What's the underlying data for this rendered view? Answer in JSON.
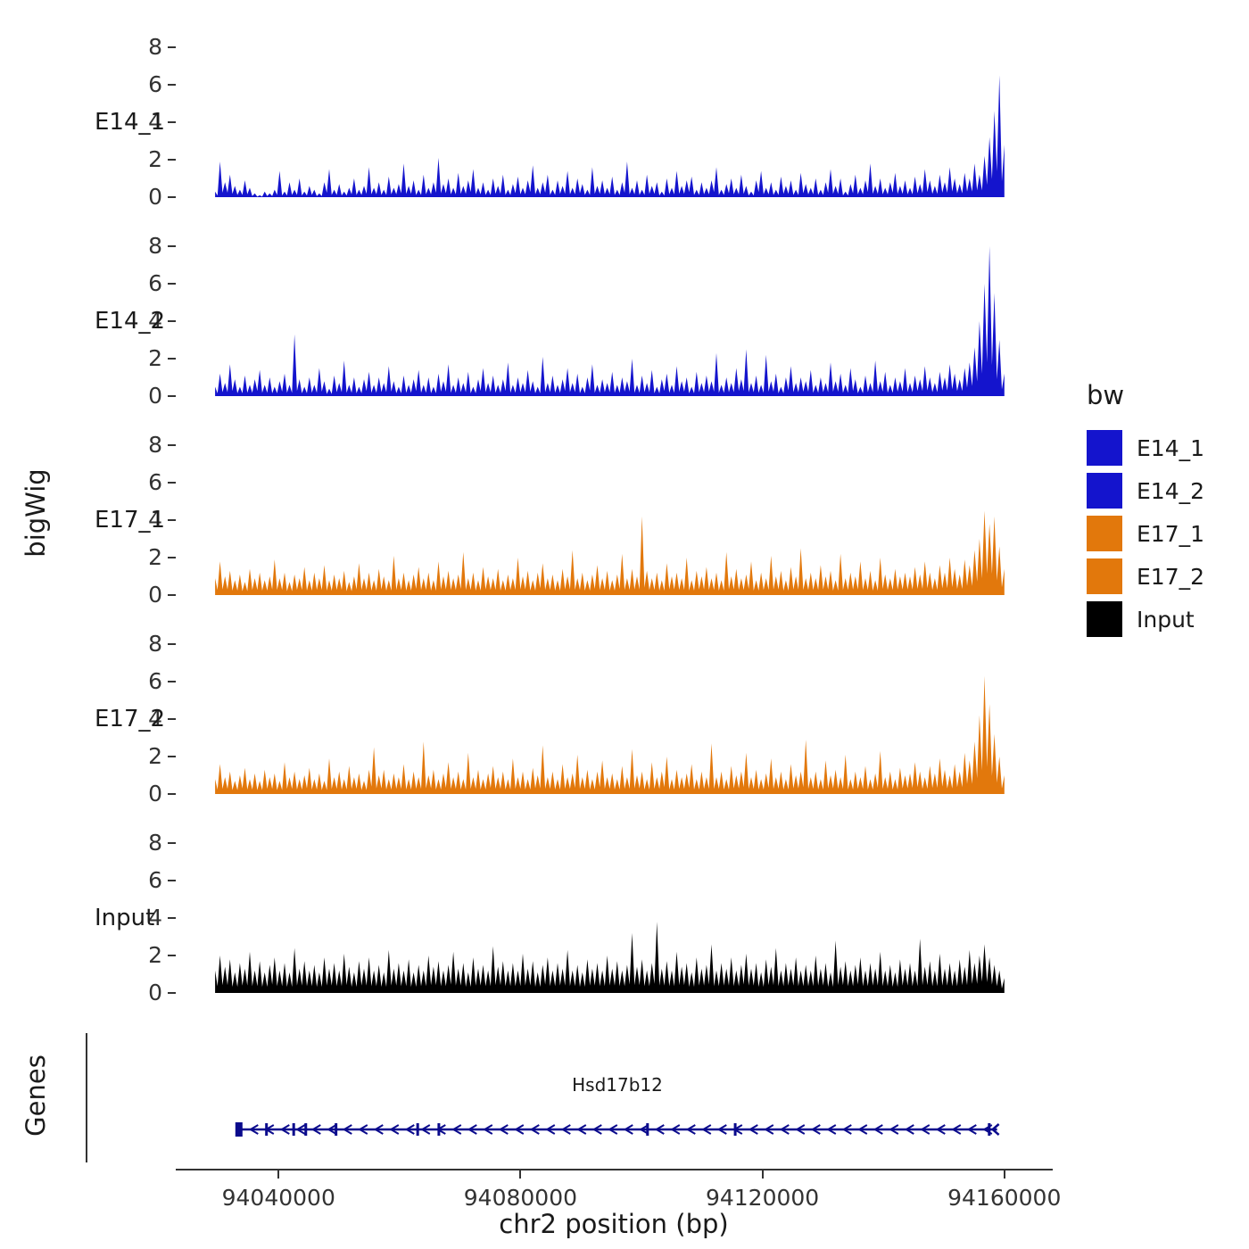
{
  "figure": {
    "y_axis_title": "bigWig",
    "genes_axis_title": "Genes",
    "x_axis_title": "chr2 position (bp)"
  },
  "legend": {
    "title": "bw",
    "items": [
      {
        "label": "E14_1",
        "color": "#1414CD"
      },
      {
        "label": "E14_2",
        "color": "#1414CD"
      },
      {
        "label": "E17_1",
        "color": "#E2780C"
      },
      {
        "label": "E17_2",
        "color": "#E2780C"
      },
      {
        "label": "Input",
        "color": "#000000"
      }
    ]
  },
  "gene": {
    "label": "Hsd17b12",
    "color": "#0A0A8C",
    "strand": "-",
    "start_bp": 94033000,
    "end_bp": 94158800,
    "exon_ticks_bp": [
      94038000,
      94042500,
      94044500,
      94049500,
      94063000,
      94066500,
      94101000,
      94115500,
      94157500
    ]
  },
  "chart_data": {
    "type": "area",
    "title": "",
    "xlabel": "chr2 position (bp)",
    "ylabel": "bigWig",
    "x_domain": [
      94023000,
      94168000
    ],
    "x_ticks": [
      {
        "bp": 94040000,
        "label": "94040000"
      },
      {
        "bp": 94080000,
        "label": "94080000"
      },
      {
        "bp": 94120000,
        "label": "94120000"
      },
      {
        "bp": 94160000,
        "label": "94160000"
      }
    ],
    "y_ticks": [
      0,
      2,
      4,
      6,
      8
    ],
    "ylim": [
      0,
      8.8
    ],
    "grid": false,
    "legend_position": "right",
    "tracks": [
      {
        "name": "E14_1",
        "color": "#1414CD",
        "start_bp": 94029500,
        "end_bp": 94160000,
        "values": [
          0.3,
          1.9,
          0.8,
          1.2,
          0.6,
          0.4,
          0.9,
          0.5,
          0.2,
          0.1,
          0.3,
          0.2,
          0.4,
          1.4,
          0.3,
          0.8,
          0.4,
          1.0,
          0.3,
          0.6,
          0.4,
          0.2,
          0.8,
          1.5,
          0.4,
          0.7,
          0.3,
          0.5,
          1.0,
          0.4,
          0.6,
          1.6,
          0.5,
          0.8,
          0.4,
          1.1,
          0.5,
          0.7,
          1.8,
          0.6,
          0.9,
          0.4,
          1.2,
          0.5,
          0.8,
          2.1,
          0.7,
          1.0,
          0.5,
          1.3,
          0.6,
          0.9,
          1.5,
          0.5,
          0.8,
          0.4,
          1.0,
          0.6,
          1.2,
          0.4,
          0.7,
          1.1,
          0.5,
          0.9,
          1.7,
          0.5,
          0.8,
          1.2,
          0.4,
          0.9,
          0.6,
          1.4,
          0.5,
          1.0,
          0.7,
          0.4,
          1.6,
          0.6,
          0.9,
          0.5,
          1.1,
          0.4,
          0.8,
          1.9,
          0.5,
          0.9,
          0.4,
          1.2,
          0.6,
          0.8,
          0.3,
          1.0,
          0.5,
          1.4,
          0.6,
          0.9,
          1.1,
          0.4,
          0.8,
          0.5,
          0.9,
          1.6,
          0.4,
          0.7,
          1.0,
          0.5,
          1.2,
          0.6,
          0.3,
          0.9,
          1.4,
          0.5,
          0.8,
          0.4,
          1.1,
          0.6,
          0.9,
          0.4,
          1.3,
          0.7,
          0.5,
          1.0,
          0.4,
          0.8,
          1.5,
          0.6,
          1.0,
          0.3,
          0.7,
          1.2,
          0.5,
          0.9,
          1.8,
          0.6,
          1.0,
          0.5,
          0.8,
          1.3,
          0.6,
          0.9,
          0.5,
          1.1,
          0.7,
          1.5,
          0.9,
          0.6,
          1.2,
          0.8,
          1.6,
          1.0,
          0.7,
          1.3,
          1.0,
          1.8,
          1.2,
          2.2,
          3.2,
          4.6,
          6.5,
          2.8
        ]
      },
      {
        "name": "E14_2",
        "color": "#1414CD",
        "start_bp": 94029500,
        "end_bp": 94160000,
        "values": [
          0.5,
          1.2,
          0.7,
          1.7,
          0.9,
          0.5,
          1.1,
          0.6,
          0.9,
          1.4,
          0.6,
          1.0,
          0.5,
          0.8,
          1.2,
          0.6,
          3.3,
          0.9,
          0.5,
          1.0,
          0.6,
          1.5,
          0.8,
          0.4,
          1.1,
          0.7,
          1.9,
          0.6,
          1.0,
          0.5,
          0.9,
          1.3,
          0.6,
          1.0,
          0.7,
          1.6,
          0.8,
          0.5,
          1.1,
          0.6,
          0.9,
          1.4,
          0.6,
          1.0,
          0.5,
          1.2,
          0.8,
          1.7,
          0.6,
          1.0,
          0.7,
          1.3,
          0.5,
          0.9,
          1.5,
          0.7,
          1.1,
          0.6,
          0.9,
          1.8,
          0.6,
          1.0,
          0.7,
          1.4,
          0.8,
          0.5,
          2.1,
          0.7,
          1.1,
          0.6,
          0.9,
          1.5,
          0.7,
          1.2,
          0.5,
          1.0,
          1.7,
          0.6,
          0.9,
          0.7,
          1.3,
          0.6,
          1.0,
          0.8,
          2.0,
          0.6,
          1.1,
          0.7,
          1.4,
          0.5,
          0.9,
          1.2,
          0.6,
          1.6,
          0.8,
          1.0,
          0.5,
          1.3,
          0.7,
          1.1,
          0.8,
          2.3,
          0.6,
          1.0,
          0.7,
          1.5,
          0.9,
          2.5,
          0.7,
          1.1,
          0.6,
          2.2,
          0.8,
          1.2,
          0.5,
          1.0,
          1.6,
          0.7,
          1.0,
          0.8,
          1.4,
          0.6,
          1.0,
          0.7,
          1.8,
          0.8,
          1.2,
          0.6,
          1.5,
          0.9,
          0.5,
          1.1,
          0.7,
          1.9,
          0.8,
          1.3,
          0.6,
          1.0,
          0.8,
          1.5,
          0.7,
          1.1,
          0.9,
          1.6,
          1.0,
          0.7,
          1.3,
          1.0,
          1.7,
          1.2,
          0.9,
          1.5,
          1.8,
          2.6,
          4.0,
          6.0,
          8.0,
          5.5,
          3.0,
          1.2
        ]
      },
      {
        "name": "E17_1",
        "color": "#E2780C",
        "start_bp": 94029500,
        "end_bp": 94160000,
        "values": [
          0.9,
          1.8,
          1.0,
          1.3,
          0.8,
          1.1,
          0.7,
          1.4,
          0.9,
          1.2,
          0.8,
          1.0,
          1.9,
          0.9,
          1.2,
          0.7,
          1.1,
          0.9,
          1.5,
          0.8,
          1.2,
          0.9,
          1.6,
          0.8,
          1.1,
          0.9,
          1.3,
          0.7,
          1.0,
          1.7,
          0.9,
          1.2,
          0.8,
          1.4,
          1.0,
          0.8,
          2.1,
          0.9,
          1.2,
          0.8,
          1.1,
          1.5,
          0.9,
          1.2,
          0.8,
          1.8,
          1.0,
          1.3,
          0.9,
          1.1,
          2.3,
          0.9,
          1.2,
          0.8,
          1.5,
          1.0,
          0.9,
          1.4,
          0.8,
          1.1,
          0.9,
          2.0,
          1.0,
          1.3,
          0.8,
          1.2,
          1.7,
          0.9,
          1.1,
          0.8,
          1.4,
          1.0,
          2.4,
          0.9,
          1.2,
          0.8,
          1.1,
          1.6,
          0.9,
          1.3,
          0.8,
          1.1,
          2.2,
          0.9,
          1.4,
          1.0,
          4.2,
          1.3,
          0.9,
          1.2,
          0.8,
          1.7,
          1.0,
          1.2,
          0.9,
          2.0,
          0.8,
          1.3,
          1.0,
          1.5,
          0.9,
          1.2,
          0.8,
          2.3,
          1.0,
          1.4,
          0.9,
          1.1,
          1.8,
          0.8,
          1.2,
          0.9,
          2.1,
          1.0,
          1.3,
          0.8,
          1.5,
          1.0,
          2.5,
          0.9,
          1.2,
          0.9,
          1.6,
          1.0,
          1.3,
          0.8,
          2.2,
          0.9,
          1.2,
          1.0,
          1.8,
          0.9,
          1.3,
          0.8,
          2.0,
          1.1,
          0.9,
          1.4,
          1.0,
          1.2,
          1.0,
          1.5,
          1.1,
          1.8,
          1.2,
          0.9,
          1.6,
          1.2,
          2.0,
          1.4,
          1.1,
          1.9,
          1.6,
          2.4,
          3.0,
          4.5,
          3.8,
          4.2,
          2.6,
          1.4
        ]
      },
      {
        "name": "E17_2",
        "color": "#E2780C",
        "start_bp": 94029500,
        "end_bp": 94160000,
        "values": [
          0.8,
          1.6,
          0.9,
          1.2,
          0.7,
          1.0,
          1.4,
          0.8,
          1.1,
          0.7,
          1.3,
          0.9,
          1.1,
          0.7,
          1.7,
          0.9,
          1.2,
          0.8,
          1.0,
          1.4,
          0.8,
          1.1,
          0.7,
          1.9,
          0.9,
          1.2,
          0.8,
          1.5,
          0.9,
          1.1,
          0.7,
          1.3,
          2.5,
          1.0,
          1.3,
          0.8,
          1.1,
          0.9,
          1.6,
          0.8,
          1.2,
          0.9,
          2.8,
          1.0,
          1.3,
          0.8,
          1.1,
          1.7,
          0.9,
          1.2,
          0.8,
          2.2,
          0.9,
          1.3,
          0.8,
          1.1,
          1.5,
          0.9,
          1.2,
          0.8,
          1.9,
          0.9,
          1.2,
          0.8,
          1.4,
          1.0,
          2.6,
          0.9,
          1.2,
          0.8,
          1.6,
          0.9,
          1.1,
          2.1,
          0.9,
          1.3,
          0.8,
          1.2,
          1.8,
          0.9,
          1.1,
          0.8,
          1.5,
          0.9,
          2.4,
          1.0,
          1.2,
          0.8,
          1.7,
          0.9,
          1.2,
          2.0,
          0.8,
          1.3,
          0.9,
          1.1,
          1.6,
          0.8,
          1.2,
          0.9,
          2.7,
          0.9,
          1.2,
          0.8,
          1.5,
          1.0,
          1.2,
          2.2,
          0.9,
          1.3,
          0.8,
          1.1,
          1.9,
          0.9,
          1.2,
          0.8,
          1.6,
          1.0,
          1.2,
          2.9,
          0.9,
          1.2,
          0.8,
          1.8,
          1.0,
          1.3,
          0.9,
          2.1,
          0.8,
          1.2,
          0.9,
          1.5,
          0.8,
          1.1,
          2.3,
          0.9,
          1.2,
          0.8,
          1.4,
          1.0,
          1.1,
          1.7,
          1.2,
          0.9,
          1.5,
          1.1,
          1.9,
          1.3,
          1.0,
          1.6,
          1.2,
          2.2,
          1.8,
          2.8,
          4.2,
          6.3,
          4.8,
          3.2,
          2.0,
          1.0
        ]
      },
      {
        "name": "Input",
        "color": "#000000",
        "start_bp": 94029500,
        "end_bp": 94160000,
        "values": [
          1.2,
          2.0,
          1.4,
          1.8,
          1.1,
          1.6,
          1.3,
          2.2,
          1.2,
          1.7,
          1.1,
          1.5,
          1.9,
          1.2,
          1.6,
          1.1,
          2.4,
          1.3,
          1.7,
          1.2,
          1.5,
          1.1,
          1.9,
          1.3,
          1.6,
          1.2,
          2.1,
          1.4,
          1.1,
          1.7,
          1.3,
          1.9,
          1.2,
          1.5,
          1.1,
          2.3,
          1.3,
          1.6,
          1.2,
          1.8,
          1.1,
          1.5,
          1.2,
          2.0,
          1.4,
          1.7,
          1.2,
          1.5,
          2.2,
          1.3,
          1.6,
          1.1,
          1.9,
          1.3,
          1.5,
          1.2,
          2.5,
          1.4,
          1.7,
          1.2,
          1.6,
          1.2,
          2.1,
          1.3,
          1.7,
          1.1,
          1.5,
          1.9,
          1.2,
          1.6,
          1.3,
          2.3,
          1.2,
          1.5,
          1.1,
          1.8,
          1.3,
          1.6,
          1.2,
          2.0,
          1.3,
          1.7,
          1.2,
          1.5,
          3.2,
          1.4,
          1.8,
          1.2,
          1.6,
          3.8,
          1.3,
          1.7,
          1.2,
          2.2,
          1.4,
          1.6,
          1.1,
          1.9,
          1.3,
          1.5,
          2.6,
          1.2,
          1.6,
          1.3,
          1.9,
          1.2,
          1.5,
          2.1,
          1.3,
          1.6,
          1.1,
          1.8,
          1.4,
          2.4,
          1.2,
          1.6,
          1.3,
          1.9,
          1.2,
          1.5,
          1.2,
          2.0,
          1.3,
          1.6,
          1.1,
          2.8,
          1.4,
          1.7,
          1.2,
          1.5,
          1.9,
          1.2,
          1.6,
          1.3,
          2.2,
          1.2,
          1.5,
          1.1,
          1.8,
          1.3,
          1.6,
          1.2,
          2.9,
          1.4,
          1.7,
          1.2,
          2.1,
          1.3,
          1.6,
          1.2,
          1.8,
          1.4,
          2.3,
          1.6,
          2.0,
          2.6,
          1.9,
          1.5,
          1.2,
          0.8
        ]
      }
    ]
  }
}
